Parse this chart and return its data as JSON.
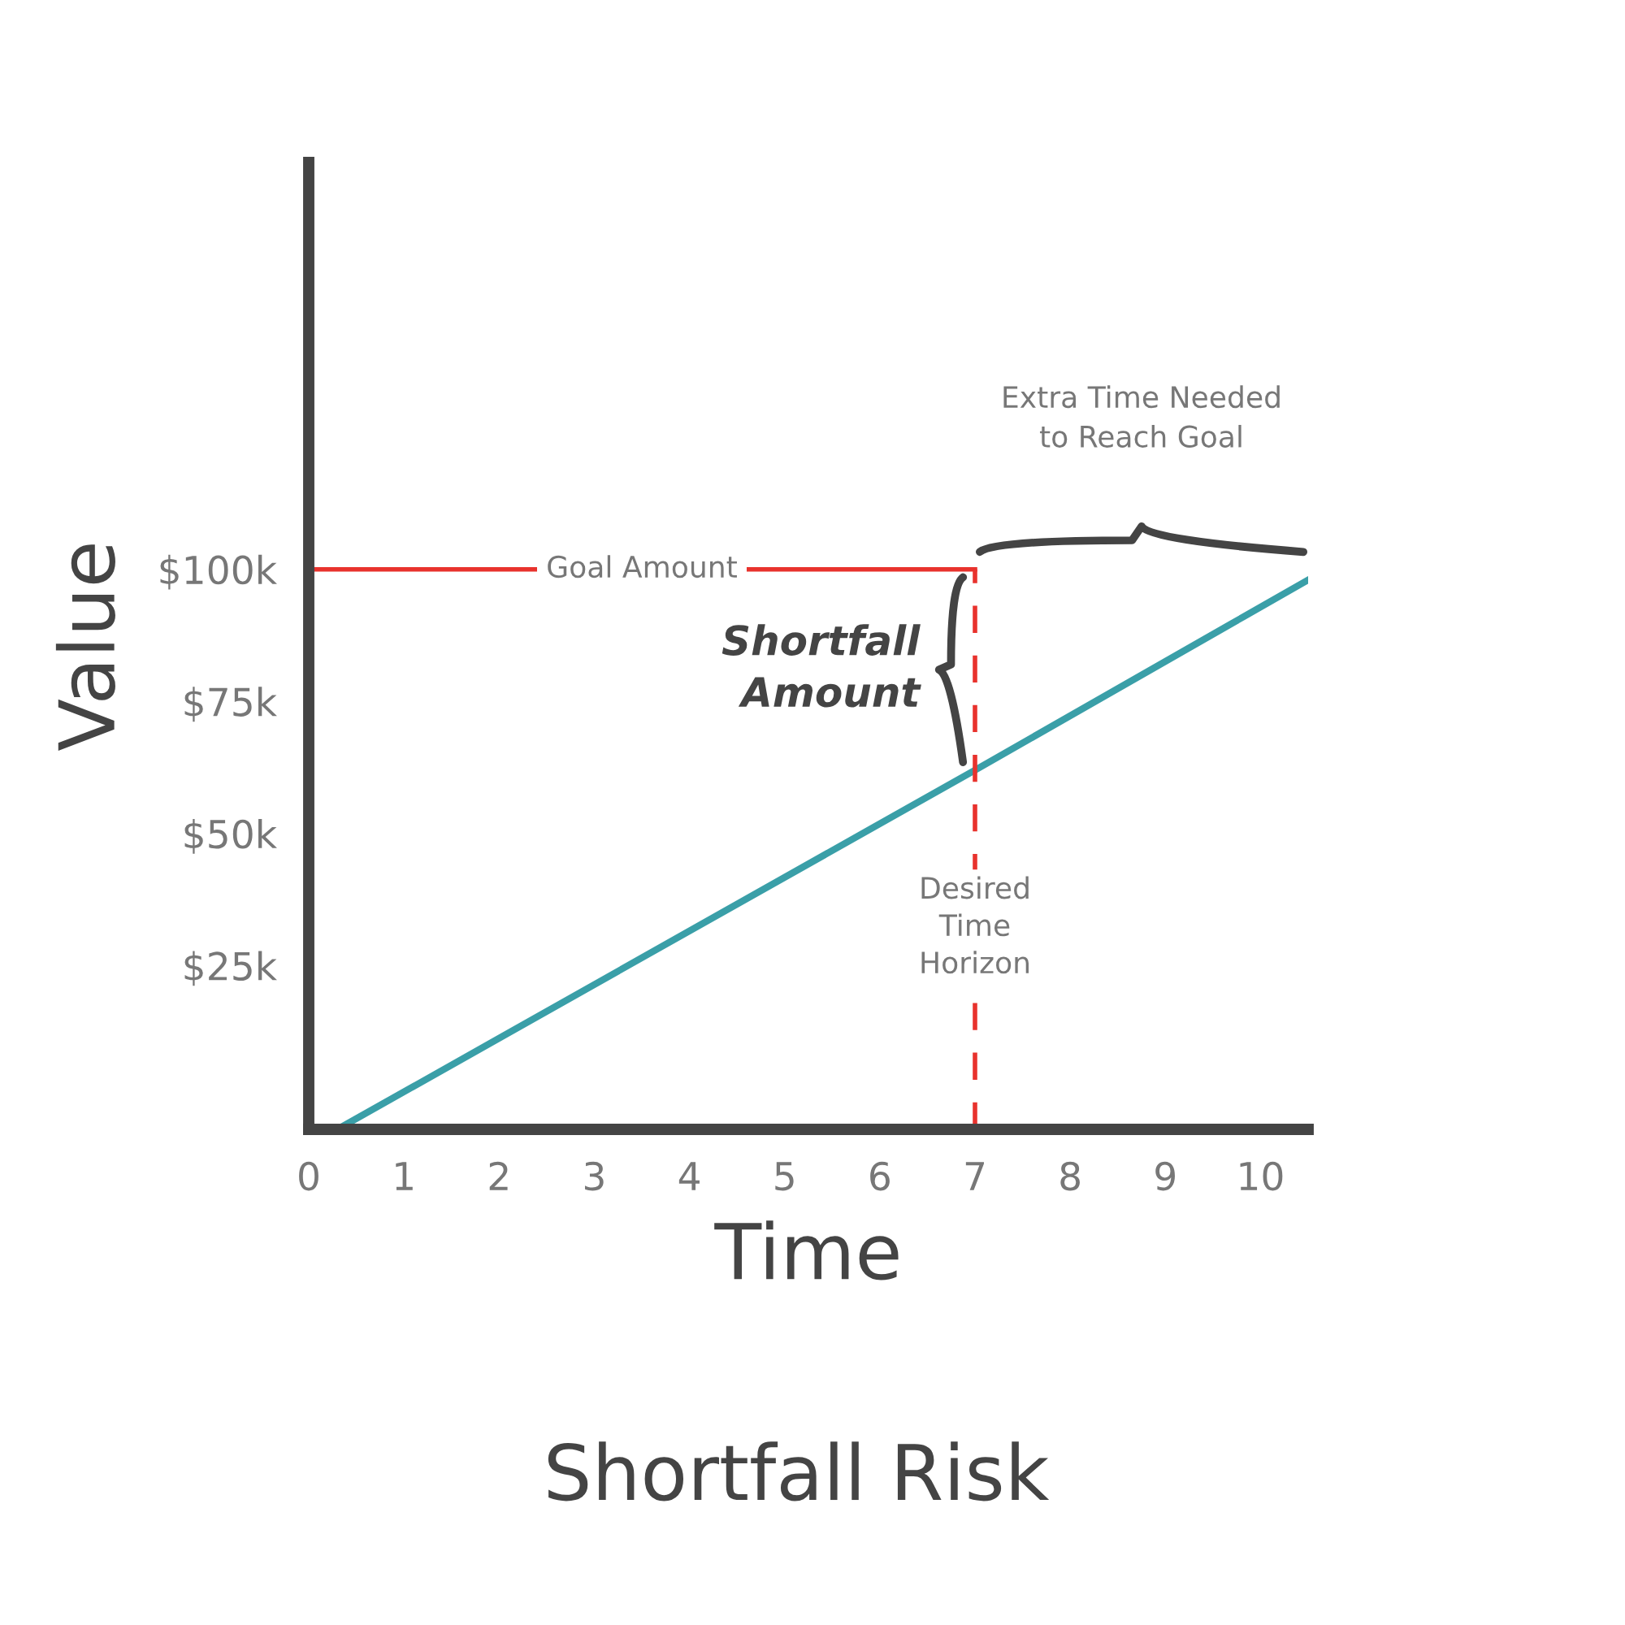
{
  "chart_data": {
    "type": "line",
    "title": "Shortfall Risk",
    "xlabel": "Time",
    "ylabel": "Value",
    "x": [
      0.3,
      7,
      10.5
    ],
    "series": [
      {
        "color": "#3a9fa8",
        "values": [
          -6,
          62,
          98
        ]
      }
    ],
    "xlim": [
      0,
      10.5
    ],
    "xticks": [
      0,
      1,
      2,
      3,
      4,
      5,
      6,
      7,
      8,
      9,
      10
    ],
    "ylim": [
      -6,
      177
    ],
    "yticks": [
      {
        "value": 25,
        "label": "$25k"
      },
      {
        "value": 50,
        "label": "$50k"
      },
      {
        "value": 75,
        "label": "$75k"
      },
      {
        "value": 100,
        "label": "$100k"
      }
    ],
    "ref_lines": [
      {
        "axis": "y",
        "value": 100,
        "label": "Goal Amount",
        "color": "#e8322d",
        "line_style": "solid"
      },
      {
        "axis": "x",
        "value": 7,
        "label": "Desired\nTime\nHorizon",
        "color": "#e8322d",
        "line_style": "dashed"
      }
    ],
    "annotations": [
      "Shortfall\nAmount",
      "Extra Time Needed\nto Reach Goal"
    ],
    "grid": false,
    "legend": false,
    "marker": "none",
    "line_style": "solid"
  }
}
